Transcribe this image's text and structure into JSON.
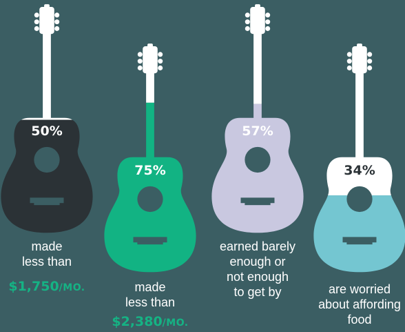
{
  "chart_data": {
    "type": "pictograph",
    "items": [
      {
        "value": 50,
        "label": "50%",
        "caption": [
          "made",
          "less than"
        ],
        "amount": "$1,750",
        "unit": "/mo.",
        "fill_color": "#2b3236",
        "empty_color": "#ffffff"
      },
      {
        "value": 75,
        "label": "75%",
        "caption": [
          "made",
          "less than"
        ],
        "amount": "$2,380",
        "unit": "/mo.",
        "fill_color": "#12b383",
        "empty_color": "#ffffff"
      },
      {
        "value": 57,
        "label": "57%",
        "caption": [
          "earned barely",
          "enough or",
          "not enough",
          "to get by"
        ],
        "amount": "",
        "unit": "",
        "fill_color": "#c9c8e0",
        "empty_color": "#ffffff"
      },
      {
        "value": 34,
        "label": "34%",
        "caption": [
          "are worried",
          "about affording",
          "food"
        ],
        "amount": "",
        "unit": "",
        "fill_color": "#74c6d1",
        "empty_color": "#ffffff"
      }
    ]
  }
}
